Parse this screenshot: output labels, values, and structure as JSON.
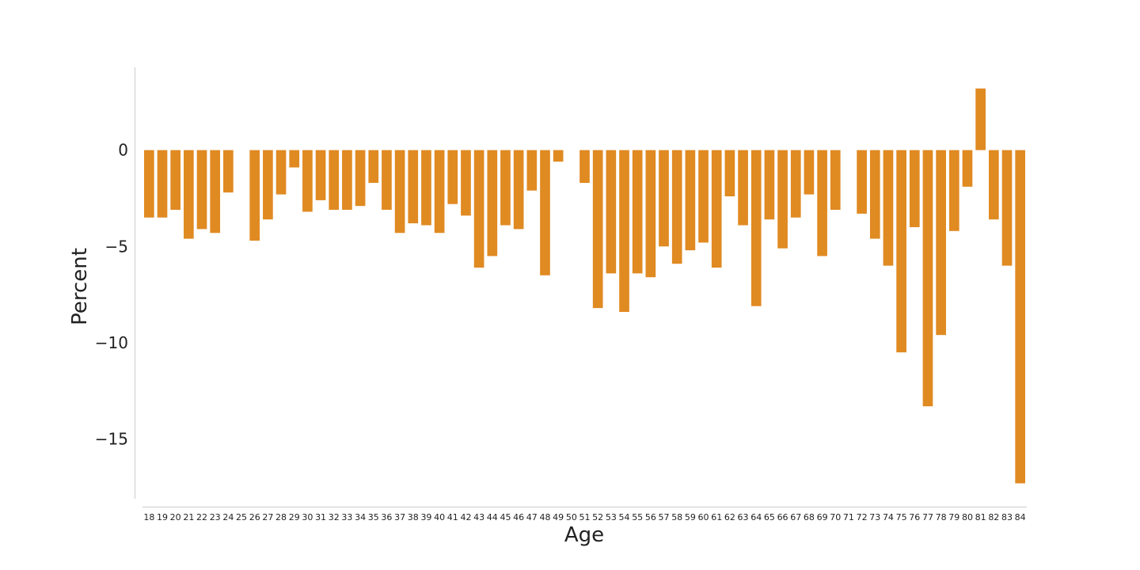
{
  "chart_data": {
    "type": "bar",
    "xlabel": "Age",
    "ylabel": "Percent",
    "ylim": [
      -18.1,
      4.3
    ],
    "yticks": [
      0,
      -5,
      -10,
      -15
    ],
    "ytick_labels": [
      "0",
      "−5",
      "−10",
      "−15"
    ],
    "grid": false,
    "bar_color": "#e08a22",
    "axis_color": "#cccccc",
    "categories": [
      "18",
      "19",
      "20",
      "21",
      "22",
      "23",
      "24",
      "25",
      "26",
      "27",
      "28",
      "29",
      "30",
      "31",
      "32",
      "33",
      "34",
      "35",
      "36",
      "37",
      "38",
      "39",
      "40",
      "41",
      "42",
      "43",
      "44",
      "45",
      "46",
      "47",
      "48",
      "49",
      "50",
      "51",
      "52",
      "53",
      "54",
      "55",
      "56",
      "57",
      "58",
      "59",
      "60",
      "61",
      "62",
      "63",
      "64",
      "65",
      "66",
      "67",
      "68",
      "69",
      "70",
      "71",
      "72",
      "73",
      "74",
      "75",
      "76",
      "77",
      "78",
      "79",
      "80",
      "81",
      "82",
      "83",
      "84"
    ],
    "values": [
      -3.5,
      -3.5,
      -3.1,
      -4.6,
      -4.1,
      -4.3,
      -2.2,
      0,
      -4.7,
      -3.6,
      -2.3,
      -0.9,
      -3.2,
      -2.6,
      -3.1,
      -3.1,
      -2.9,
      -1.7,
      -3.1,
      -4.3,
      -3.8,
      -3.9,
      -4.3,
      -2.8,
      -3.4,
      -6.1,
      -5.5,
      -3.9,
      -4.1,
      -2.1,
      -6.5,
      -0.6,
      0,
      -1.7,
      -8.2,
      -6.4,
      -8.4,
      -6.4,
      -6.6,
      -5.0,
      -5.9,
      -5.2,
      -4.8,
      -6.1,
      -2.4,
      -3.9,
      -8.1,
      -3.6,
      -5.1,
      -3.5,
      -2.3,
      -5.5,
      -3.1,
      0,
      -3.3,
      -4.6,
      -6.0,
      -10.5,
      -4.0,
      -13.3,
      -9.6,
      -4.2,
      -1.9,
      3.2,
      -3.6,
      -6.0,
      -17.3
    ]
  }
}
